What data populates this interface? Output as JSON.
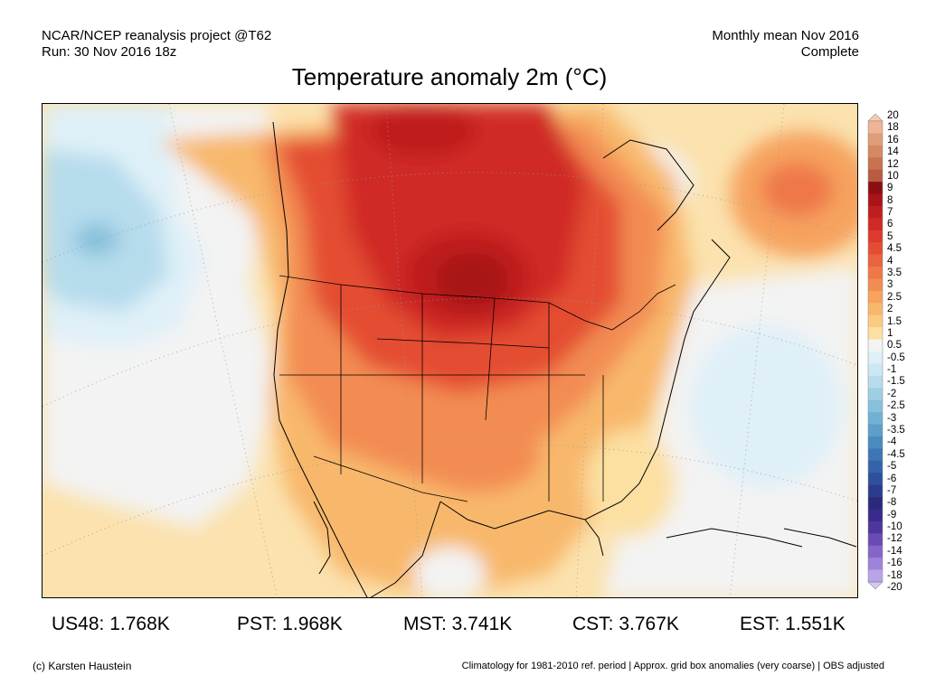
{
  "header": {
    "left_line1": "NCAR/NCEP reanalysis project @T62",
    "left_line2": "Run: 30 Nov 2016 18z",
    "right_line1": "Monthly mean Nov 2016",
    "right_line2": "Complete"
  },
  "title": "Temperature anomaly 2m (°C)",
  "colorbar": {
    "labels": [
      "20",
      "18",
      "16",
      "14",
      "12",
      "10",
      "9",
      "8",
      "7",
      "6",
      "5",
      "4.5",
      "4",
      "3.5",
      "3",
      "2.5",
      "2",
      "1.5",
      "1",
      "0.5",
      "-0.5",
      "-1",
      "-1.5",
      "-2",
      "-2.5",
      "-3",
      "-3.5",
      "-4",
      "-4.5",
      "-5",
      "-6",
      "-7",
      "-8",
      "-9",
      "-10",
      "-12",
      "-14",
      "-16",
      "-18",
      "-20"
    ],
    "colors": [
      "#f4cbb2",
      "#edb595",
      "#e09e78",
      "#d58862",
      "#c87250",
      "#b95a42",
      "#8b0e12",
      "#a81418",
      "#bf1e1e",
      "#d02a25",
      "#dc3a2c",
      "#e44d33",
      "#ea6240",
      "#ef7748",
      "#f38c52",
      "#f6a35e",
      "#f8b86c",
      "#fbcb7f",
      "#fce0a2",
      "#f3f3f3",
      "#dff0f8",
      "#cbe7f3",
      "#b6dcec",
      "#9fcfe4",
      "#87c1dc",
      "#71b1d3",
      "#5c9fca",
      "#4a8bc0",
      "#3d76b4",
      "#3463aa",
      "#2d4f9c",
      "#2b3c8c",
      "#2a2a7c",
      "#3a2a8c",
      "#4f369e",
      "#6a4bb4",
      "#8465c8",
      "#9f83da",
      "#baa4e8",
      "#d4c6f2"
    ]
  },
  "stats": [
    {
      "label": "US48: 1.768K"
    },
    {
      "label": "PST: 1.968K"
    },
    {
      "label": "MST: 3.741K"
    },
    {
      "label": "CST: 3.767K"
    },
    {
      "label": "EST: 1.551K"
    }
  ],
  "footer": {
    "left": "(c) Karsten Haustein",
    "right": "Climatology for 1981-2010 ref. period | Approx. grid box anomalies (very coarse) | OBS adjusted"
  }
}
